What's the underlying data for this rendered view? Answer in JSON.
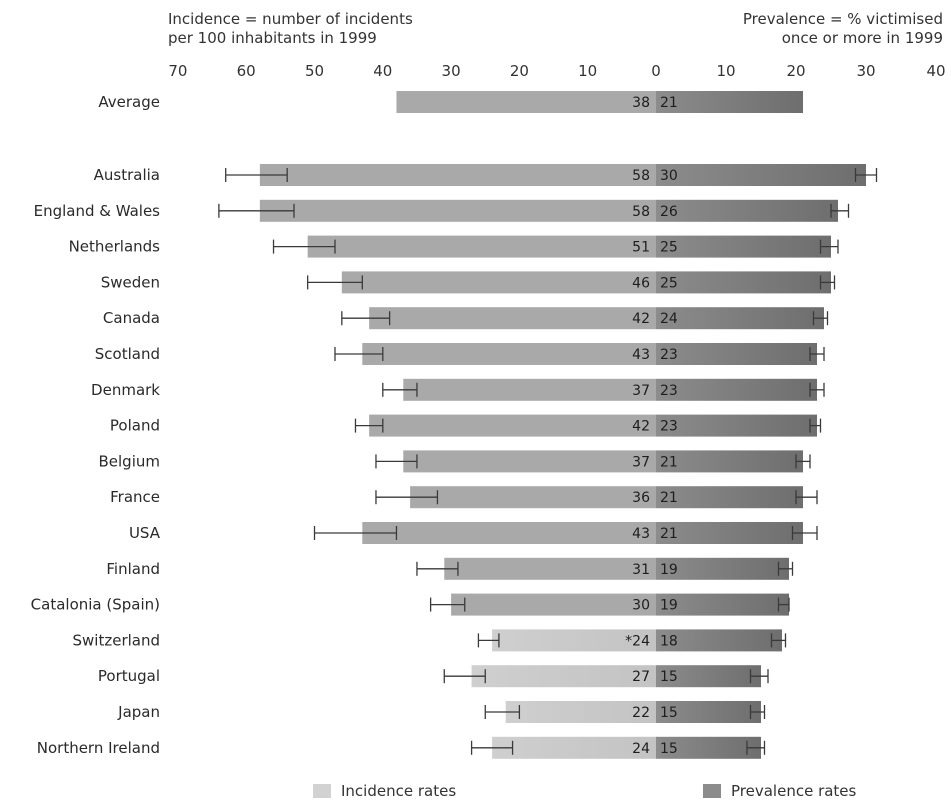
{
  "header": {
    "incidence_line1": "Incidence = number of incidents",
    "incidence_line2": "per 100 inhabitants in 1999",
    "prevalence_line1": "Prevalence = % victimised",
    "prevalence_line2": "once or more in 1999"
  },
  "legend": {
    "incidence_label": "Incidence rates",
    "prevalence_label": "Prevalence rates"
  },
  "colors": {
    "incidence_dark": "#a9a9a9",
    "incidence_light": "#d2d2d2",
    "prevalence_dark": "#6e6e6e",
    "prevalence_mid": "#8c8c8c",
    "error_bar": "#3a3a3a"
  },
  "chart_data": {
    "type": "bar",
    "layout": "back-to-back horizontal bars",
    "categories": [
      "Average",
      "Australia",
      "England & Wales",
      "Netherlands",
      "Sweden",
      "Canada",
      "Scotland",
      "Denmark",
      "Poland",
      "Belgium",
      "France",
      "USA",
      "Finland",
      "Catalonia (Spain)",
      "Switzerland",
      "Portugal",
      "Japan",
      "Northern Ireland"
    ],
    "incidence_axis": {
      "ticks": [
        70,
        60,
        50,
        40,
        30,
        20,
        10,
        0
      ],
      "range": [
        0,
        70
      ],
      "direction": "leftward"
    },
    "prevalence_axis": {
      "ticks": [
        10,
        20,
        30,
        40
      ],
      "range": [
        0,
        40
      ],
      "direction": "rightward"
    },
    "series": [
      {
        "name": "Incidence rates",
        "values": [
          38,
          58,
          58,
          51,
          46,
          42,
          43,
          37,
          42,
          37,
          36,
          43,
          31,
          30,
          24,
          27,
          22,
          24
        ],
        "value_labels": [
          "38",
          "58",
          "58",
          "51",
          "46",
          "42",
          "43",
          "37",
          "42",
          "37",
          "36",
          "43",
          "31",
          "30",
          "*24",
          "27",
          "22",
          "24"
        ],
        "error_low": [
          null,
          54,
          53,
          47,
          43,
          39,
          40,
          35,
          40,
          35,
          32,
          38,
          29,
          28,
          23,
          25,
          20,
          21
        ],
        "error_high": [
          null,
          63,
          64,
          56,
          51,
          46,
          47,
          40,
          44,
          41,
          41,
          50,
          35,
          33,
          26,
          31,
          25,
          27
        ]
      },
      {
        "name": "Prevalence rates",
        "values": [
          21,
          30,
          26,
          25,
          25,
          24,
          23,
          23,
          23,
          21,
          21,
          21,
          19,
          19,
          18,
          15,
          15,
          15
        ],
        "value_labels": [
          "21",
          "30",
          "26",
          "25",
          "25",
          "24",
          "23",
          "23",
          "23",
          "21",
          "21",
          "21",
          "19",
          "19",
          "18",
          "15",
          "15",
          "15"
        ],
        "error_low": [
          null,
          28.5,
          25,
          23.5,
          23.5,
          22.5,
          22,
          22,
          22,
          20,
          20,
          19.5,
          17.5,
          17.5,
          16.5,
          13.5,
          13.5,
          13
        ],
        "error_high": [
          null,
          31.5,
          27.5,
          26,
          25.5,
          24.5,
          24,
          24,
          23.5,
          22,
          23,
          23,
          19.5,
          19,
          18.5,
          16,
          15.5,
          15.5
        ]
      }
    ],
    "grid": false,
    "legend_position": "bottom"
  }
}
